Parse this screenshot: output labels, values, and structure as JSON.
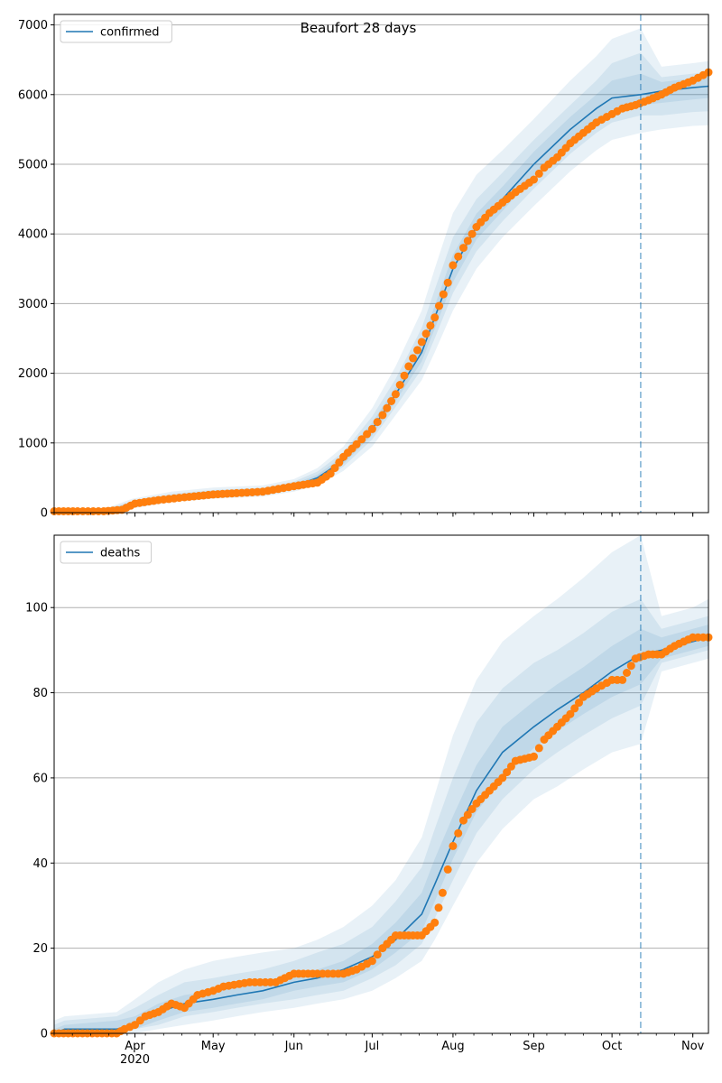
{
  "figure": {
    "title": "Beaufort 28 days"
  },
  "chart_data": [
    {
      "type": "line",
      "ylim": [
        0,
        7150
      ],
      "yticks": [
        0,
        1000,
        2000,
        3000,
        4000,
        5000,
        6000,
        7000
      ],
      "grid": "y",
      "legend": {
        "placement": "top-left",
        "entries": [
          "confirmed"
        ]
      },
      "forecast_start": "2020-10-12",
      "model_series": {
        "name": "confirmed",
        "color": "#1f77b4",
        "x": [
          "2020-03-01",
          "2020-03-20",
          "2020-03-31",
          "2020-04-15",
          "2020-05-01",
          "2020-05-20",
          "2020-06-01",
          "2020-06-10",
          "2020-06-20",
          "2020-07-01",
          "2020-07-10",
          "2020-07-20",
          "2020-07-25",
          "2020-08-01",
          "2020-08-10",
          "2020-08-20",
          "2020-09-01",
          "2020-09-15",
          "2020-09-25",
          "2020-10-01",
          "2020-10-12",
          "2020-10-20",
          "2020-11-01",
          "2020-11-07"
        ],
        "y": [
          10,
          20,
          120,
          210,
          270,
          300,
          380,
          500,
          750,
          1200,
          1700,
          2300,
          2800,
          3500,
          4100,
          4500,
          5000,
          5500,
          5800,
          5950,
          6000,
          6050,
          6100,
          6120
        ],
        "bands": [
          {
            "low": [
              0,
              0,
              60,
              150,
              200,
              230,
              300,
              390,
              600,
              950,
              1400,
              1900,
              2300,
              2900,
              3500,
              3950,
              4400,
              4900,
              5200,
              5350,
              5450,
              5500,
              5550,
              5560
            ],
            "high": [
              30,
              50,
              200,
              300,
              360,
              390,
              480,
              640,
              950,
              1500,
              2100,
              2900,
              3500,
              4300,
              4850,
              5200,
              5650,
              6200,
              6550,
              6800,
              6950,
              6400,
              6450,
              6480
            ],
            "opacity": 0.1
          },
          {
            "low": [
              0,
              5,
              85,
              175,
              225,
              255,
              330,
              430,
              660,
              1050,
              1520,
              2060,
              2500,
              3150,
              3750,
              4180,
              4650,
              5150,
              5450,
              5600,
              5700,
              5700,
              5750,
              5760
            ],
            "high": [
              22,
              40,
              165,
              270,
              325,
              355,
              445,
              590,
              870,
              1380,
              1920,
              2650,
              3200,
              3950,
              4500,
              4880,
              5350,
              5850,
              6200,
              6450,
              6600,
              6250,
              6300,
              6330
            ],
            "opacity": 0.1
          },
          {
            "low": [
              3,
              10,
              100,
              190,
              240,
              270,
              350,
              455,
              700,
              1110,
              1600,
              2170,
              2640,
              3310,
              3920,
              4330,
              4830,
              5330,
              5630,
              5780,
              5850,
              5880,
              5930,
              5950
            ],
            "high": [
              17,
              30,
              145,
              240,
              300,
              330,
              415,
              545,
              810,
              1290,
              1800,
              2450,
              2970,
              3700,
              4290,
              4680,
              5180,
              5680,
              6000,
              6200,
              6300,
              6180,
              6230,
              6260
            ],
            "opacity": 0.1
          }
        ]
      },
      "observed": {
        "name": "observed",
        "color": "#ff7f0e",
        "x": [
          "2020-03-01",
          "2020-03-10",
          "2020-03-20",
          "2020-03-27",
          "2020-04-01",
          "2020-04-10",
          "2020-04-20",
          "2020-05-01",
          "2020-05-10",
          "2020-05-20",
          "2020-06-01",
          "2020-06-10",
          "2020-06-15",
          "2020-06-20",
          "2020-06-25",
          "2020-07-01",
          "2020-07-05",
          "2020-07-10",
          "2020-07-15",
          "2020-07-20",
          "2020-07-25",
          "2020-07-30",
          "2020-08-01",
          "2020-08-05",
          "2020-08-10",
          "2020-08-15",
          "2020-08-20",
          "2020-08-25",
          "2020-09-01",
          "2020-09-05",
          "2020-09-10",
          "2020-09-15",
          "2020-09-20",
          "2020-09-25",
          "2020-10-01",
          "2020-10-05",
          "2020-10-10",
          "2020-10-15",
          "2020-10-20",
          "2020-10-25",
          "2020-11-01",
          "2020-11-07"
        ],
        "y": [
          20,
          20,
          20,
          40,
          130,
          180,
          220,
          260,
          280,
          300,
          380,
          430,
          560,
          800,
          980,
          1200,
          1400,
          1700,
          2100,
          2450,
          2800,
          3300,
          3550,
          3800,
          4100,
          4300,
          4450,
          4600,
          4780,
          4950,
          5100,
          5300,
          5450,
          5600,
          5720,
          5800,
          5850,
          5920,
          6000,
          6100,
          6200,
          6320
        ]
      }
    },
    {
      "type": "line",
      "ylim": [
        0,
        117
      ],
      "yticks": [
        0,
        20,
        40,
        60,
        80,
        100
      ],
      "grid": "y",
      "legend": {
        "placement": "top-left",
        "entries": [
          "deaths"
        ]
      },
      "forecast_start": "2020-10-12",
      "xtick_labels": [
        "Apr\n2020",
        "May",
        "Jun",
        "Jul",
        "Aug",
        "Sep",
        "Oct",
        "Nov"
      ],
      "model_series": {
        "name": "deaths",
        "color": "#1f77b4",
        "x": [
          "2020-03-01",
          "2020-03-05",
          "2020-03-25",
          "2020-04-01",
          "2020-04-10",
          "2020-04-20",
          "2020-05-01",
          "2020-05-10",
          "2020-05-20",
          "2020-06-01",
          "2020-06-10",
          "2020-06-20",
          "2020-07-01",
          "2020-07-10",
          "2020-07-20",
          "2020-07-25",
          "2020-08-01",
          "2020-08-10",
          "2020-08-20",
          "2020-09-01",
          "2020-09-10",
          "2020-09-20",
          "2020-10-01",
          "2020-10-12",
          "2020-10-20",
          "2020-11-01",
          "2020-11-07"
        ],
        "y": [
          0,
          1,
          1,
          2,
          5,
          7,
          8,
          9,
          10,
          12,
          13,
          15,
          18,
          22,
          28,
          35,
          45,
          57,
          66,
          72,
          76,
          80,
          85,
          89,
          90,
          92,
          93
        ],
        "bands": [
          {
            "low": [
              0,
              0,
              0,
              0,
              1,
              2,
              3,
              4,
              5,
              6,
              7,
              8,
              10,
              13,
              17,
              22,
              30,
              40,
              48,
              55,
              58,
              62,
              66,
              68,
              85,
              87,
              88
            ],
            "high": [
              3,
              4,
              5,
              8,
              12,
              15,
              17,
              18,
              19,
              20,
              22,
              25,
              30,
              36,
              46,
              56,
              70,
              83,
              92,
              98,
              102,
              107,
              113,
              117,
              98,
              100,
              102
            ],
            "opacity": 0.1
          },
          {
            "low": [
              0,
              0,
              0,
              1,
              2,
              4,
              5,
              6,
              7,
              8,
              9,
              10,
              13,
              16,
              21,
              27,
              36,
              47,
              55,
              62,
              66,
              70,
              74,
              77,
              87,
              89,
              90
            ],
            "high": [
              2,
              3,
              4,
              6,
              9,
              12,
              13,
              14,
              15,
              17,
              19,
              21,
              25,
              31,
              39,
              48,
              60,
              73,
              81,
              87,
              90,
              94,
              99,
              102,
              95,
              97,
              98
            ],
            "opacity": 0.1
          },
          {
            "low": [
              0,
              0,
              0,
              1,
              3,
              5,
              6,
              7,
              8,
              10,
              11,
              12,
              15,
              19,
              24,
              31,
              41,
              52,
              60,
              67,
              71,
              75,
              79,
              82,
              88,
              90,
              91
            ],
            "high": [
              1,
              2,
              3,
              4,
              7,
              9,
              10,
              11,
              12,
              14,
              15,
              17,
              21,
              26,
              33,
              41,
              51,
              63,
              72,
              78,
              82,
              86,
              91,
              95,
              93,
              95,
              96
            ],
            "opacity": 0.1
          }
        ]
      },
      "observed": {
        "name": "observed",
        "color": "#ff7f0e",
        "x": [
          "2020-03-01",
          "2020-03-10",
          "2020-03-25",
          "2020-03-28",
          "2020-04-01",
          "2020-04-05",
          "2020-04-10",
          "2020-04-15",
          "2020-04-20",
          "2020-04-25",
          "2020-05-01",
          "2020-05-05",
          "2020-05-15",
          "2020-05-25",
          "2020-06-01",
          "2020-06-10",
          "2020-06-20",
          "2020-06-25",
          "2020-07-01",
          "2020-07-05",
          "2020-07-10",
          "2020-07-15",
          "2020-07-20",
          "2020-07-25",
          "2020-07-28",
          "2020-08-01",
          "2020-08-05",
          "2020-08-10",
          "2020-08-15",
          "2020-08-20",
          "2020-08-25",
          "2020-09-01",
          "2020-09-05",
          "2020-09-10",
          "2020-09-15",
          "2020-09-20",
          "2020-09-25",
          "2020-10-01",
          "2020-10-05",
          "2020-10-10",
          "2020-10-15",
          "2020-10-20",
          "2020-10-25",
          "2020-11-01",
          "2020-11-07"
        ],
        "y": [
          0,
          0,
          0,
          1,
          2,
          4,
          5,
          7,
          6,
          9,
          10,
          11,
          12,
          12,
          14,
          14,
          14,
          15,
          17,
          20,
          23,
          23,
          23,
          26,
          33,
          44,
          50,
          54,
          57,
          60,
          64,
          65,
          69,
          72,
          75,
          79,
          81,
          83,
          83,
          88,
          89,
          89,
          91,
          93,
          93
        ]
      }
    }
  ]
}
